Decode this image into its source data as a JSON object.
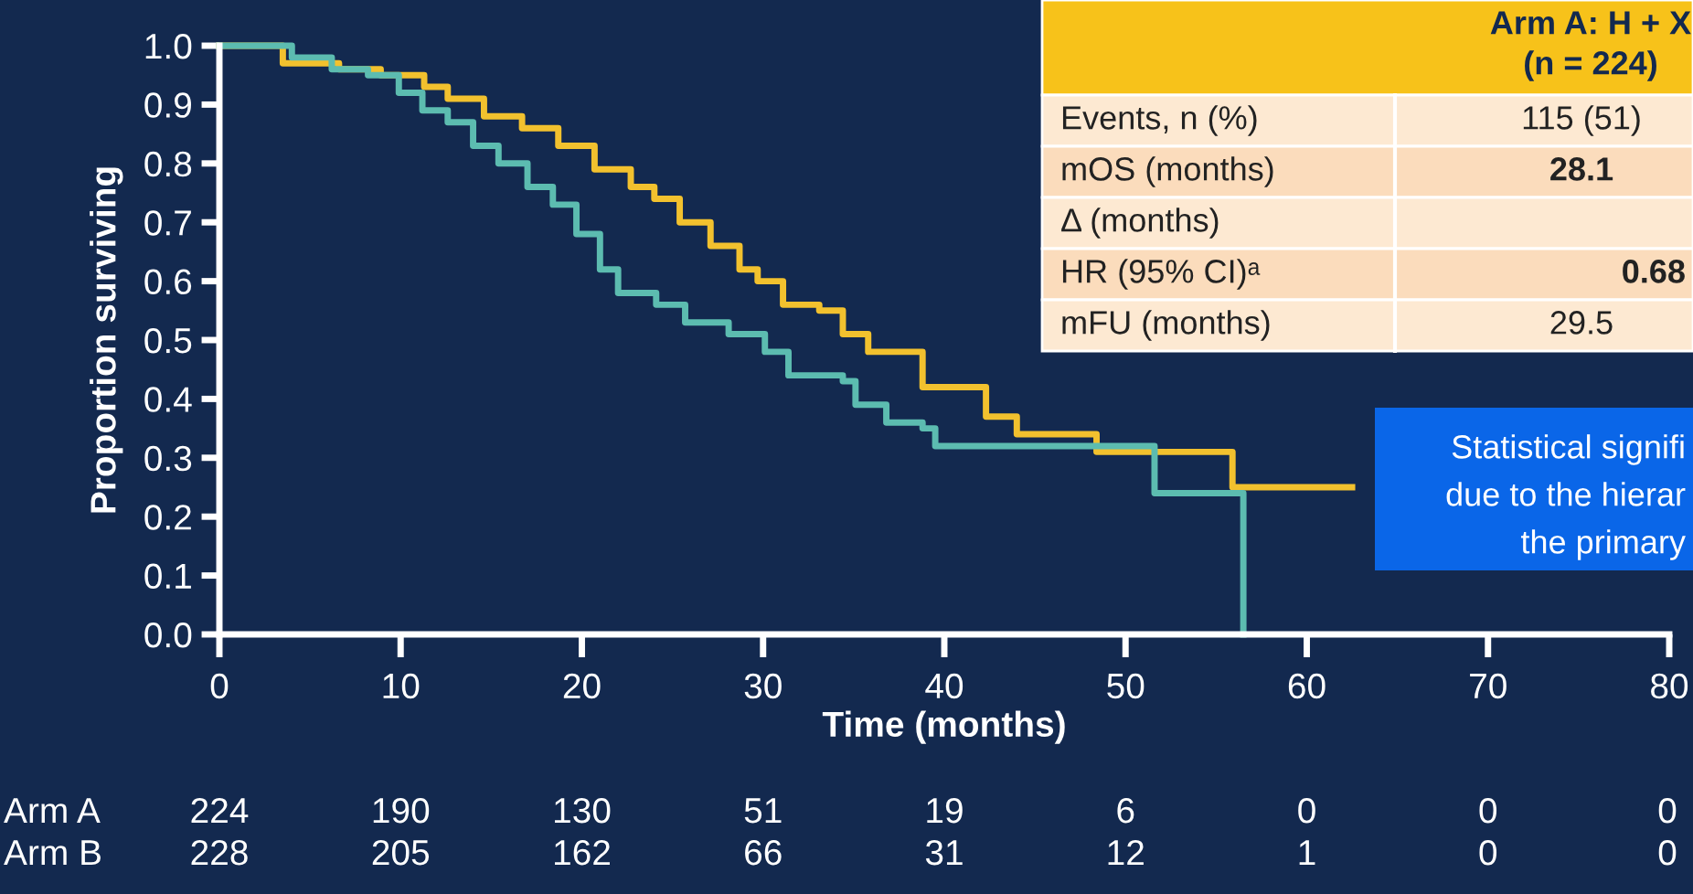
{
  "chart_data": {
    "type": "step",
    "xlabel": "Time (months)",
    "ylabel": "Proportion surviving",
    "xlim": [
      0,
      80
    ],
    "ylim": [
      0,
      1.0
    ],
    "xticks": [
      0,
      10,
      20,
      30,
      40,
      50,
      60,
      70,
      80
    ],
    "yticks": [
      {
        "value": 0,
        "label": "0.0"
      },
      {
        "value": 0.1,
        "label": "0.1"
      },
      {
        "value": 0.2,
        "label": "0.2"
      },
      {
        "value": 0.3,
        "label": "0.3"
      },
      {
        "value": 0.4,
        "label": "0.4"
      },
      {
        "value": 0.5,
        "label": "0.5"
      },
      {
        "value": 0.6,
        "label": "0.6"
      },
      {
        "value": 0.7,
        "label": "0.7"
      },
      {
        "value": 0.8,
        "label": "0.8"
      },
      {
        "value": 0.9,
        "label": "0.9"
      },
      {
        "value": 1.0,
        "label": "1.0"
      }
    ],
    "grid": false,
    "legend": false,
    "marker": "none",
    "line_style": "solid",
    "series": [
      {
        "color": "#f2c12e",
        "x": [
          0,
          3.5,
          6.6,
          8.9,
          11.3,
          12.6,
          14.6,
          16.7,
          18.7,
          20.7,
          22.7,
          24.0,
          25.4,
          27.1,
          28.7,
          29.7,
          31.1,
          33.1,
          34.4,
          35.8,
          37.8,
          38.8,
          42.3,
          44.0,
          48.4,
          55.9,
          62.5
        ],
        "values": [
          1.0,
          0.97,
          0.96,
          0.95,
          0.93,
          0.91,
          0.88,
          0.86,
          0.83,
          0.79,
          0.76,
          0.74,
          0.7,
          0.66,
          0.62,
          0.6,
          0.56,
          0.55,
          0.51,
          0.48,
          0.48,
          0.42,
          0.37,
          0.34,
          0.31,
          0.25,
          0.25
        ]
      },
      {
        "color": "#5cbcb0",
        "x": [
          0,
          4.0,
          6.2,
          8.2,
          9.9,
          11.2,
          12.6,
          14.0,
          15.4,
          17.0,
          18.4,
          19.7,
          21.0,
          22.0,
          24.1,
          25.7,
          28.1,
          30.1,
          31.4,
          34.4,
          35.1,
          36.8,
          38.8,
          39.5,
          51.6,
          56.5
        ],
        "values": [
          1.0,
          0.98,
          0.96,
          0.95,
          0.92,
          0.89,
          0.87,
          0.83,
          0.8,
          0.76,
          0.73,
          0.68,
          0.62,
          0.58,
          0.56,
          0.53,
          0.51,
          0.48,
          0.44,
          0.43,
          0.39,
          0.36,
          0.35,
          0.32,
          0.24,
          0.0
        ]
      }
    ],
    "annotations": [
      "Arm A: H + X",
      "(n = 224)",
      "Events, n (%)",
      "115 (51)",
      "mOS (months)",
      "28.1",
      "Δ (months)",
      "HR (95% CI)ᵃ",
      "0.68",
      "mFU (months)",
      "29.5",
      "Statistical signifi",
      "due to the hierar",
      "the primary",
      "Arm A",
      "224",
      "190",
      "130",
      "51",
      "19",
      "6",
      "0",
      "0",
      "0",
      "Arm B",
      "228",
      "205",
      "162",
      "66",
      "31",
      "12",
      "1",
      "0",
      "0"
    ]
  }
}
